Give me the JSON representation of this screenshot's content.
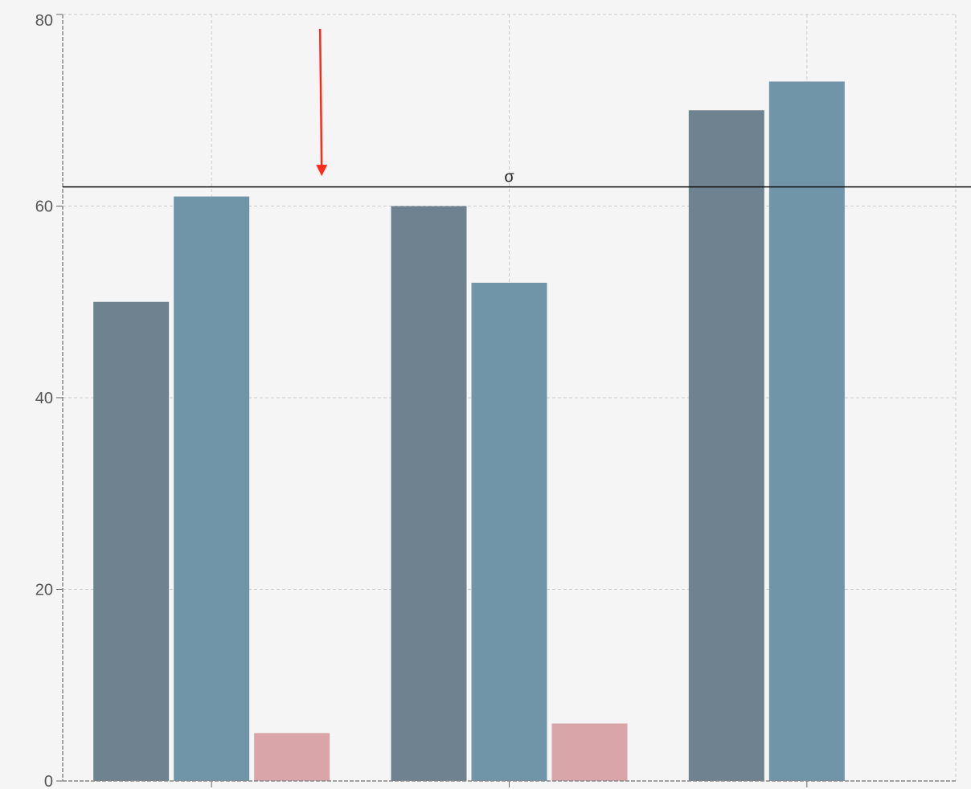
{
  "chart_data": {
    "type": "bar",
    "title": "",
    "xlabel": "",
    "ylabel": "",
    "categories": [
      "",
      "",
      ""
    ],
    "ylim": [
      0,
      80
    ],
    "yticks": [
      0,
      20,
      40,
      60,
      80
    ],
    "grid": true,
    "series": [
      {
        "values": [
          50,
          60,
          70
        ],
        "color": "#6e838f"
      },
      {
        "values": [
          61,
          52,
          73
        ],
        "color": "#7095a9"
      },
      {
        "values": [
          5,
          6,
          0
        ],
        "color": "#d9a5a8"
      }
    ],
    "reference_line": {
      "value": 62,
      "label": "σ",
      "color": "#111111"
    },
    "annotation_arrow": {
      "color": "#ff2a1a",
      "from_y": 78.5,
      "to_y": 63.3,
      "x_category_position": 0.87
    }
  }
}
